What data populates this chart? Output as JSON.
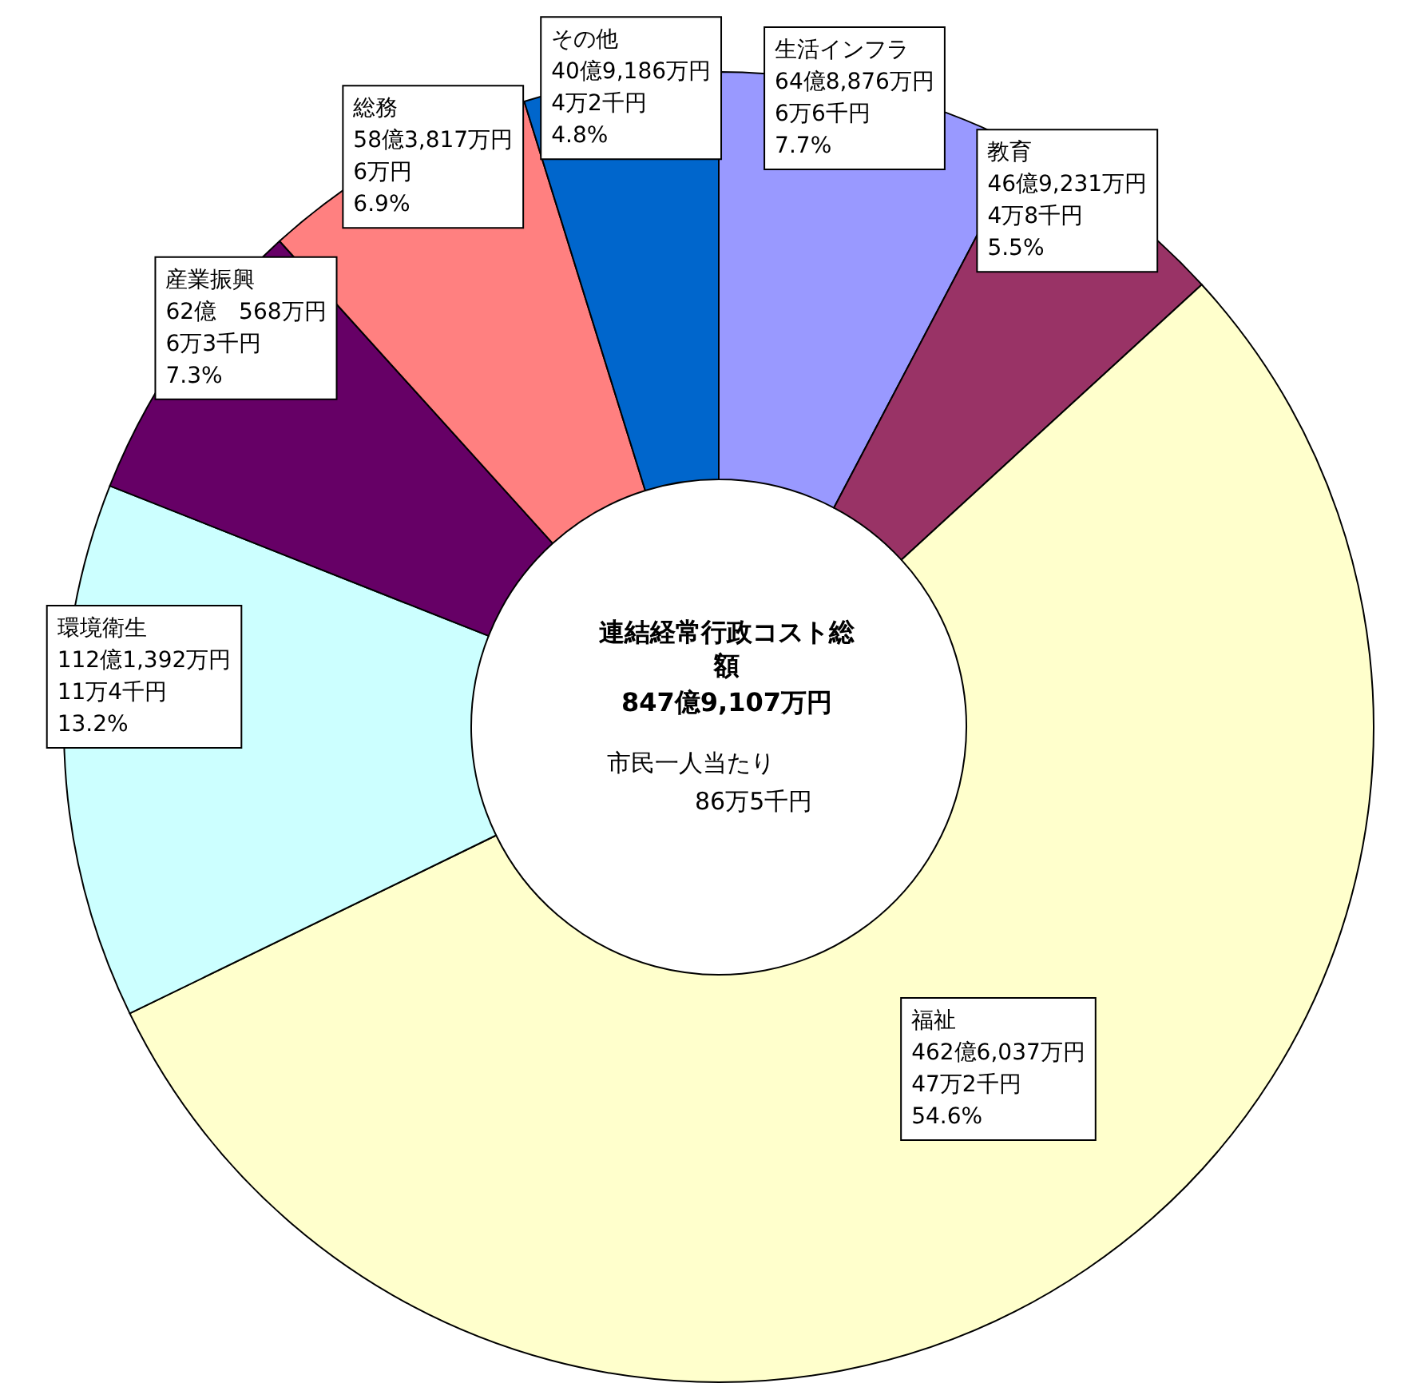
{
  "chart_data": {
    "type": "donut",
    "title": "連結経常行政コスト総額",
    "subtitle": "847億9,107万円",
    "annotations": [
      "市民一人当たり",
      "86万5千円"
    ],
    "categories": [
      "生活インフラ",
      "教育",
      "福祉",
      "環境衛生",
      "産業振興",
      "総務",
      "その他"
    ],
    "values": [
      7.7,
      5.5,
      54.6,
      13.2,
      7.3,
      6.9,
      4.8
    ],
    "colors": [
      "#9999ff",
      "#993366",
      "#ffffcc",
      "#ccffff",
      "#660066",
      "#ff8080",
      "#0066cc"
    ],
    "value_labels": [
      "64億8,876万円\n6万6千円\n7.7%",
      "46億9,231万円\n4万8千円\n5.5%",
      "462億6,037万円\n47万2千円\n54.6%",
      "112億1,392万円\n11万4千円\n13.2%",
      "62億　568万円\n6万3千円\n7.3%",
      "58億3,817万円\n6万円\n6.9%",
      "40億9,186万円\n4万2千円\n4.8%"
    ],
    "legend": false
  }
}
